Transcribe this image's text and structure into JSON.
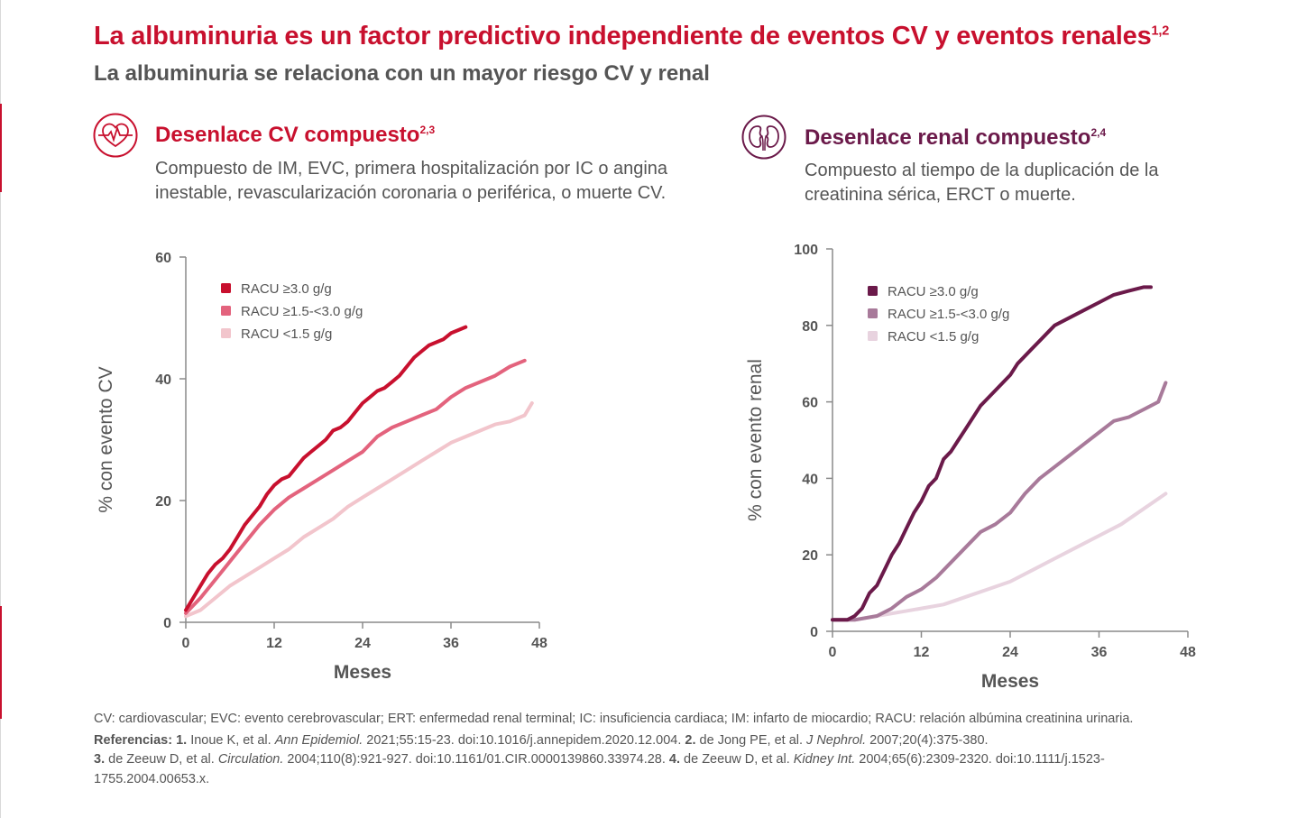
{
  "header": {
    "title": "La albuminuria es un factor predictivo independiente de eventos CV y eventos renales",
    "title_sup": "1,2",
    "subtitle": "La albuminuria se relaciona con un mayor riesgo CV y renal"
  },
  "colors": {
    "brand_red": "#c8102e",
    "brand_purple": "#6b1a4a"
  },
  "panels": [
    {
      "icon": "heart-pulse-icon",
      "title": "Desenlace CV compuesto",
      "title_sup": "2,3",
      "description": "Compuesto de IM, EVC, primera hospitalización por IC o angina inestable, revascularización coronaria o periférica, o muerte CV."
    },
    {
      "icon": "kidneys-icon",
      "title": "Desenlace renal compuesto",
      "title_sup": "2,4",
      "description": "Compuesto al tiempo de la duplicación de la creatinina sérica, ERCT o muerte."
    }
  ],
  "chart_data": [
    {
      "type": "line",
      "xlabel": "Meses",
      "ylabel": "% con evento CV",
      "xlim": [
        0,
        48
      ],
      "ylim": [
        0,
        60
      ],
      "xticks": [
        0,
        12,
        24,
        36,
        48
      ],
      "yticks": [
        0,
        20,
        40,
        60
      ],
      "legend_position": "top-left",
      "series": [
        {
          "name": "RACU ≥3.0 g/g",
          "color": "#c8102e",
          "x": [
            0,
            1,
            2,
            3,
            4,
            5,
            6,
            7,
            8,
            9,
            10,
            11,
            12,
            13,
            14,
            15,
            16,
            17,
            18,
            19,
            20,
            21,
            22,
            23,
            24,
            25,
            26,
            27,
            28,
            29,
            30,
            31,
            32,
            33,
            34,
            35,
            36,
            37,
            38
          ],
          "y": [
            2,
            4,
            6,
            8,
            9.5,
            10.5,
            12,
            14,
            16,
            17.5,
            19,
            21,
            22.5,
            23.5,
            24,
            25.5,
            27,
            28,
            29,
            30,
            31.5,
            32,
            33,
            34.5,
            36,
            37,
            38,
            38.5,
            39.5,
            40.5,
            42,
            43.5,
            44.5,
            45.5,
            46,
            46.5,
            47.5,
            48,
            48.5
          ]
        },
        {
          "name": "RACU ≥1.5-<3.0 g/g",
          "color": "#e3637d",
          "x": [
            0,
            2,
            4,
            6,
            8,
            10,
            12,
            14,
            16,
            18,
            20,
            22,
            24,
            26,
            28,
            30,
            32,
            34,
            36,
            38,
            40,
            42,
            44,
            46
          ],
          "y": [
            1.5,
            4,
            7,
            10,
            13,
            16,
            18.5,
            20.5,
            22,
            23.5,
            25,
            26.5,
            28,
            30.5,
            32,
            33,
            34,
            35,
            37,
            38.5,
            39.5,
            40.5,
            42,
            43
          ]
        },
        {
          "name": "RACU <1.5 g/g",
          "color": "#f2c5cc",
          "x": [
            0,
            2,
            4,
            6,
            8,
            10,
            12,
            14,
            16,
            18,
            20,
            22,
            24,
            26,
            28,
            30,
            32,
            34,
            36,
            38,
            40,
            42,
            44,
            46,
            47
          ],
          "y": [
            1,
            2,
            4,
            6,
            7.5,
            9,
            10.5,
            12,
            14,
            15.5,
            17,
            19,
            20.5,
            22,
            23.5,
            25,
            26.5,
            28,
            29.5,
            30.5,
            31.5,
            32.5,
            33,
            34,
            36
          ]
        }
      ]
    },
    {
      "type": "line",
      "xlabel": "Meses",
      "ylabel": "% con evento renal",
      "xlim": [
        0,
        48
      ],
      "ylim": [
        0,
        100
      ],
      "xticks": [
        0,
        12,
        24,
        36,
        48
      ],
      "yticks": [
        0,
        20,
        40,
        60,
        80,
        100
      ],
      "legend_position": "top-left",
      "series": [
        {
          "name": "RACU ≥3.0 g/g",
          "color": "#6b1a4a",
          "x": [
            0,
            2,
            3,
            4,
            5,
            6,
            7,
            8,
            9,
            10,
            11,
            12,
            13,
            14,
            15,
            16,
            17,
            18,
            19,
            20,
            21,
            22,
            23,
            24,
            25,
            26,
            27,
            28,
            29,
            30,
            32,
            34,
            36,
            38,
            40,
            42,
            43
          ],
          "y": [
            3,
            3,
            4,
            6,
            10,
            12,
            16,
            20,
            23,
            27,
            31,
            34,
            38,
            40,
            45,
            47,
            50,
            53,
            56,
            59,
            61,
            63,
            65,
            67,
            70,
            72,
            74,
            76,
            78,
            80,
            82,
            84,
            86,
            88,
            89,
            90,
            90
          ]
        },
        {
          "name": "RACU ≥1.5-<3.0 g/g",
          "color": "#a87a9a",
          "x": [
            0,
            3,
            6,
            8,
            10,
            12,
            14,
            16,
            18,
            20,
            22,
            24,
            26,
            28,
            30,
            32,
            34,
            36,
            38,
            40,
            42,
            44,
            45
          ],
          "y": [
            3,
            3,
            4,
            6,
            9,
            11,
            14,
            18,
            22,
            26,
            28,
            31,
            36,
            40,
            43,
            46,
            49,
            52,
            55,
            56,
            58,
            60,
            65
          ]
        },
        {
          "name": "RACU <1.5 g/g",
          "color": "#e8d3df",
          "x": [
            0,
            3,
            6,
            9,
            12,
            15,
            18,
            21,
            24,
            27,
            30,
            33,
            36,
            39,
            42,
            45
          ],
          "y": [
            3,
            3,
            4,
            5,
            6,
            7,
            9,
            11,
            13,
            16,
            19,
            22,
            25,
            28,
            32,
            36
          ]
        }
      ]
    }
  ],
  "footer": {
    "abbreviations": "CV: cardiovascular; EVC: evento cerebrovascular; ERT: enfermedad renal terminal; IC: insuficiencia cardiaca; IM: infarto de miocardio; RACU: relación albúmina creatinina urinaria.",
    "references_label": "Referencias:",
    "references": [
      {
        "num": "1.",
        "pre": "Inoue K, et al. ",
        "journal": "Ann Epidemiol.",
        "post": " 2021;55:15-23. doi:10.1016/j.annepidem.2020.12.004."
      },
      {
        "num": "2.",
        "pre": "de Jong PE, et al. ",
        "journal": "J Nephrol.",
        "post": " 2007;20(4):375-380."
      },
      {
        "num": "3.",
        "pre": "de Zeeuw D, et al. ",
        "journal": "Circulation.",
        "post": " 2004;110(8):921-927. doi:10.1161/01.CIR.0000139860.33974.28."
      },
      {
        "num": "4.",
        "pre": "de Zeeuw D, et al. ",
        "journal": "Kidney Int.",
        "post": " 2004;65(6):2309-2320. doi:10.1111/j.1523-1755.2004.00653.x."
      }
    ]
  }
}
